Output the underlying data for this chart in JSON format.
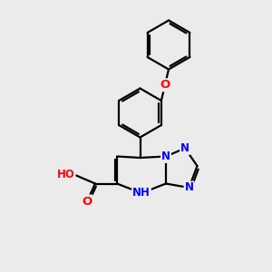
{
  "bg_color": "#ebebeb",
  "bond_color": "#000000",
  "bond_width": 1.6,
  "atom_colors": {
    "N": "#0000ff",
    "O": "#ff0000",
    "H": "#808080"
  },
  "font_size": 8.5,
  "figsize": [
    3.0,
    3.0
  ],
  "dpi": 100,
  "xlim": [
    0,
    10
  ],
  "ylim": [
    0,
    10
  ]
}
